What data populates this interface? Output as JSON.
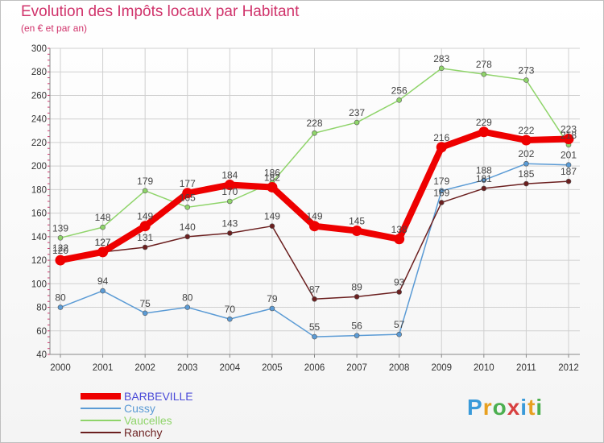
{
  "header": {
    "title": "Evolution des Impôts locaux par Habitant",
    "subtitle": "(en € et par an)"
  },
  "brand": {
    "name": "Proxiti",
    "colors": [
      "#3a9ad9",
      "#e8a020",
      "#4caf50",
      "#d84040"
    ]
  },
  "chart_data": {
    "type": "line",
    "x": [
      "2000",
      "2001",
      "2002",
      "2003",
      "2004",
      "2005",
      "2006",
      "2007",
      "2008",
      "2009",
      "2010",
      "2011",
      "2012"
    ],
    "ylim": [
      40,
      300
    ],
    "yticks": [
      40,
      60,
      80,
      100,
      120,
      140,
      160,
      180,
      200,
      220,
      240,
      260,
      280,
      300
    ],
    "grid": true,
    "legend": "bottom-left",
    "series": [
      {
        "name": "BARBEVILLE",
        "color": "#ee0000",
        "values": [
          120,
          127,
          149,
          177,
          184,
          182,
          149,
          145,
          138,
          216,
          229,
          222,
          223
        ]
      },
      {
        "name": "Cussy",
        "color": "#5b9bd5",
        "values": [
          80,
          94,
          75,
          80,
          70,
          79,
          55,
          56,
          57,
          179,
          188,
          202,
          201
        ]
      },
      {
        "name": "Vaucelles",
        "color": "#8fd46a",
        "values": [
          139,
          148,
          179,
          165,
          170,
          186,
          228,
          237,
          256,
          283,
          278,
          273,
          218
        ]
      },
      {
        "name": "Ranchy",
        "color": "#6b1f1f",
        "values": [
          122,
          127,
          131,
          140,
          143,
          149,
          87,
          89,
          93,
          169,
          181,
          185,
          187
        ]
      }
    ]
  }
}
